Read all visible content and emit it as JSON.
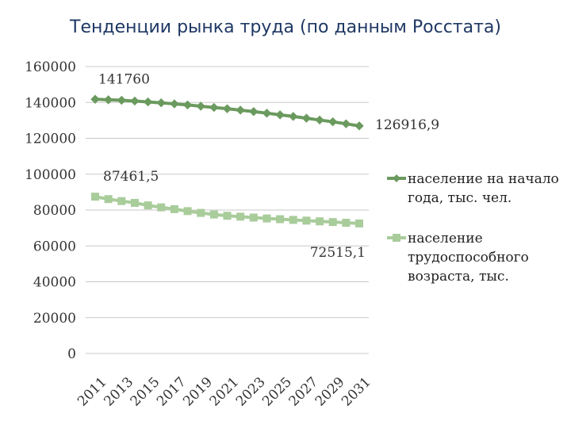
{
  "title": "Тенденции  рынка труда (по данным Росстата)",
  "chart_data": {
    "type": "line",
    "title": "Тенденции  рынка труда (по данным Росстата)",
    "x": [
      2011,
      2012,
      2013,
      2014,
      2015,
      2016,
      2017,
      2018,
      2019,
      2020,
      2021,
      2022,
      2023,
      2024,
      2025,
      2026,
      2027,
      2028,
      2029,
      2030,
      2031
    ],
    "x_tick_labels": [
      "2011",
      "2013",
      "2015",
      "2017",
      "2019",
      "2021",
      "2023",
      "2025",
      "2027",
      "2029",
      "2031"
    ],
    "ylim": [
      0,
      160000
    ],
    "y_ticks": [
      0,
      20000,
      40000,
      60000,
      80000,
      100000,
      120000,
      140000,
      160000
    ],
    "grid": true,
    "legend_position": "right",
    "series": [
      {
        "name": "население на начало года, тыс. чел.",
        "color": "#6b9a5e",
        "marker": "diamond",
        "values": [
          141760,
          141500,
          141200,
          140800,
          140300,
          139800,
          139200,
          138600,
          137900,
          137200,
          136500,
          135700,
          134900,
          134000,
          133100,
          132200,
          131200,
          130200,
          129200,
          128100,
          126916.9
        ],
        "first_label": "141760",
        "last_label": "126916,9"
      },
      {
        "name": "население трудоспособного возраста, тыс.",
        "color": "#a9cc9b",
        "marker": "square",
        "values": [
          87461.5,
          86100,
          85000,
          84000,
          82600,
          81500,
          80500,
          79400,
          78400,
          77500,
          76800,
          76300,
          75800,
          75300,
          74900,
          74500,
          74100,
          73700,
          73300,
          72900,
          72515.1
        ],
        "first_label": "87461,5",
        "last_label": "72515,1"
      }
    ]
  }
}
